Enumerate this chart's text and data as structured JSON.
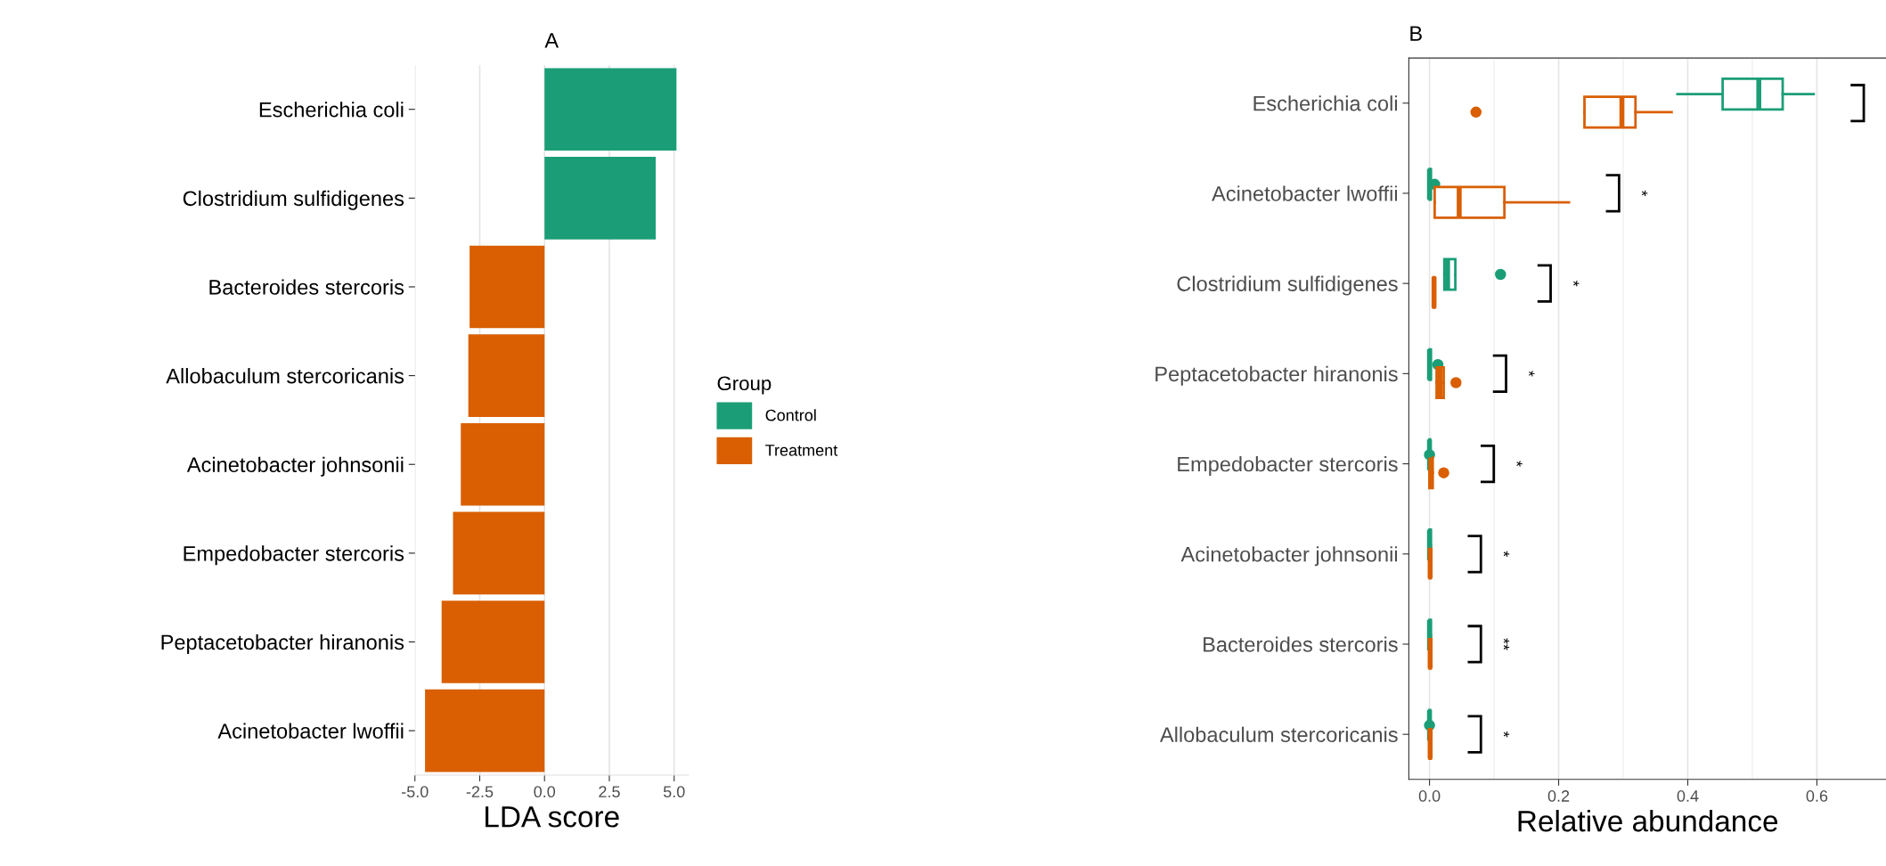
{
  "chart_data": [
    {
      "type": "bar",
      "title": "A",
      "xlabel": "LDA score",
      "orientation": "horizontal",
      "stacked": true,
      "categories": [
        "Escherichia coli",
        "Clostridium sulfidigenes",
        "Bacteroides stercoris",
        "Allobaculum stercoricanis",
        "Acinetobacter johnsonii",
        "Empedobacter stercoris",
        "Peptacetobacter hiranonis",
        "Acinetobacter lwoffii"
      ],
      "series": [
        {
          "name": "Control",
          "color": "#1b9e77",
          "values": [
            5.09,
            4.29,
            null,
            null,
            null,
            null,
            null,
            null
          ]
        },
        {
          "name": "Treatment",
          "color": "#d95f02",
          "values": [
            null,
            null,
            -2.89,
            -2.94,
            -3.23,
            -3.53,
            -3.97,
            -4.61
          ]
        }
      ],
      "xlim": [
        -5.0,
        5.55
      ],
      "xticks": [
        {
          "value": -5.0,
          "label": "-5.0"
        },
        {
          "value": -2.5,
          "label": "-2.5"
        },
        {
          "value": 0.0,
          "label": "0.0"
        },
        {
          "value": 2.5,
          "label": "2.5"
        },
        {
          "value": 5.0,
          "label": "5.0"
        }
      ],
      "grid": "x",
      "legend": "right",
      "legend_title": "Group"
    },
    {
      "type": "box",
      "title": "B",
      "xlabel": "Relative abundance",
      "orientation": "horizontal",
      "categories": [
        "Escherichia coli",
        "Acinetobacter lwoffii",
        "Clostridium sulfidigenes",
        "Peptacetobacter hiranonis",
        "Empedobacter stercoris",
        "Acinetobacter johnsonii",
        "Bacteroides stercoris",
        "Allobaculum stercoricanis"
      ],
      "series": [
        {
          "color": "#1b9e77",
          "boxes": [
            {
              "low": 0.384,
              "q1": 0.454,
              "median": 0.51,
              "q3": 0.547,
              "high": 0.595
            },
            {
              "low": 0.0,
              "q1": 0.0,
              "median": 0.0,
              "q3": 0.002,
              "high": 0.002,
              "outliers": [
                0.008
              ]
            },
            {
              "low": 0.023,
              "q1": 0.023,
              "median": 0.028,
              "q3": 0.04,
              "high": 0.04,
              "outliers": [
                0.11
              ]
            },
            {
              "low": 0.0,
              "q1": 0.0,
              "median": 0.0,
              "q3": 0.002,
              "high": 0.002,
              "outliers": [
                0.013
              ]
            },
            {
              "low": 0.0,
              "q1": 0.0,
              "median": 0.0,
              "q3": 0.001,
              "high": 0.001,
              "outliers": [
                0.0
              ]
            },
            {
              "low": 0.0,
              "q1": 0.0,
              "median": 0.0,
              "q3": 0.002,
              "high": 0.002
            },
            {
              "low": 0.0,
              "q1": 0.0,
              "median": 0.0,
              "q3": 0.002,
              "high": 0.002
            },
            {
              "low": 0.0,
              "q1": 0.0,
              "median": 0.0,
              "q3": 0.001,
              "high": 0.001,
              "outliers": [
                0.0
              ]
            }
          ]
        },
        {
          "color": "#d95f02",
          "boxes": [
            {
              "low": 0.24,
              "q1": 0.24,
              "median": 0.298,
              "q3": 0.319,
              "high": 0.375,
              "outliers": [
                0.072
              ]
            },
            {
              "low": 0.008,
              "q1": 0.008,
              "median": 0.046,
              "q3": 0.116,
              "high": 0.216
            },
            {
              "low": 0.006,
              "q1": 0.006,
              "median": 0.007,
              "q3": 0.008,
              "high": 0.008
            },
            {
              "low": 0.011,
              "q1": 0.011,
              "median": 0.016,
              "q3": 0.022,
              "high": 0.022,
              "outliers": [
                0.041
              ]
            },
            {
              "low": 0.0,
              "q1": 0.0,
              "median": 0.002,
              "q3": 0.005,
              "high": 0.005,
              "outliers": [
                0.022
              ]
            },
            {
              "low": 0.0,
              "q1": 0.0,
              "median": 0.001,
              "q3": 0.002,
              "high": 0.002
            },
            {
              "low": 0.0,
              "q1": 0.0,
              "median": 0.001,
              "q3": 0.002,
              "high": 0.002
            },
            {
              "low": 0.0,
              "q1": 0.0,
              "median": 0.001,
              "q3": 0.002,
              "high": 0.002
            }
          ]
        }
      ],
      "annotations": [
        "*",
        "*",
        "*",
        "*",
        "*",
        "**",
        "*"
      ],
      "xlim": [
        -0.032,
        0.707
      ],
      "xticks": [
        {
          "value": 0.0,
          "label": "0.0"
        },
        {
          "value": 0.2,
          "label": "0.2"
        },
        {
          "value": 0.4,
          "label": "0.4"
        },
        {
          "value": 0.6,
          "label": "0.6"
        }
      ],
      "grid": "x"
    }
  ]
}
